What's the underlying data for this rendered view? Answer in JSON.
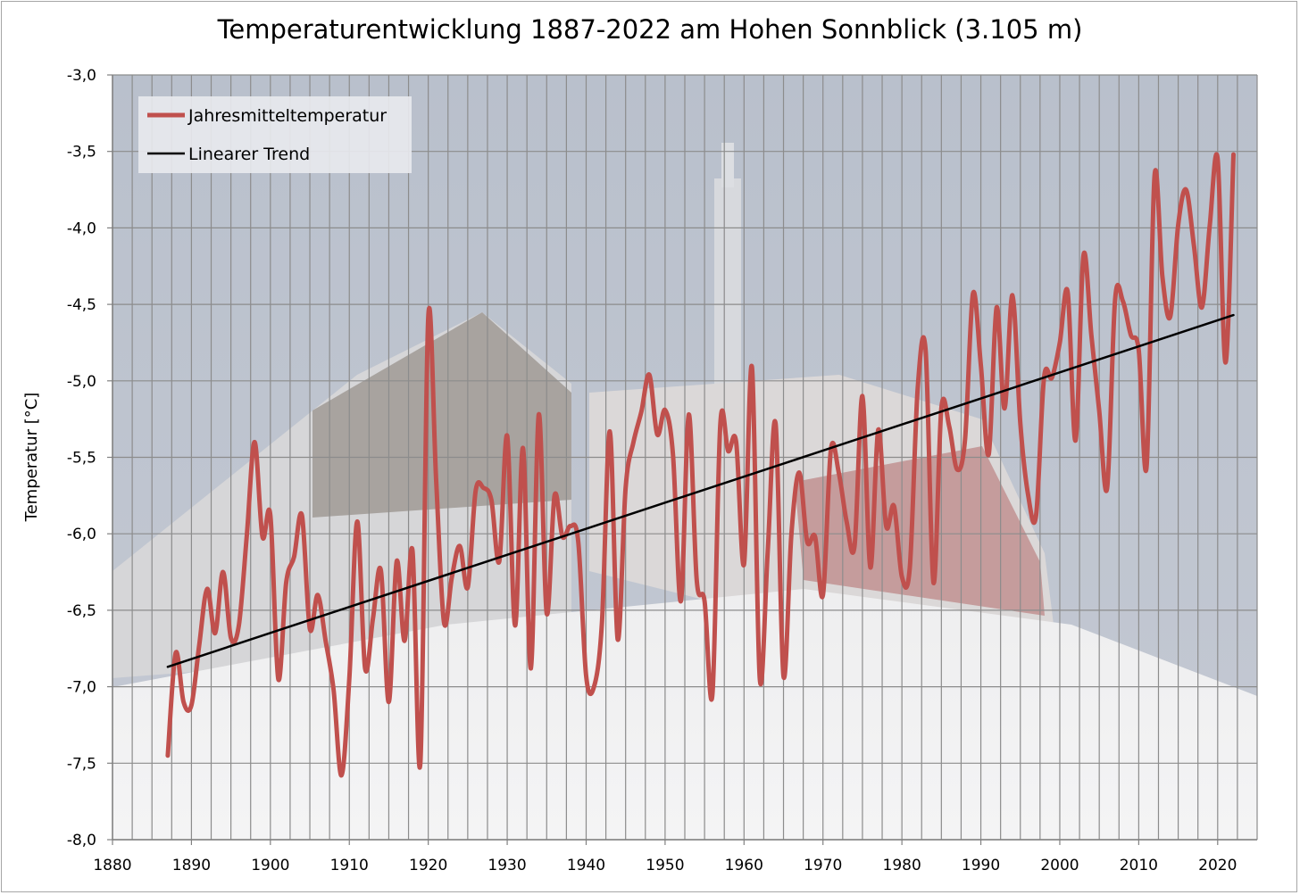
{
  "chart_data": {
    "type": "line",
    "title": "Temperaturentwicklung 1887-2022 am Hohen Sonnblick (3.105 m)",
    "xlabel": "",
    "ylabel": "Temperatur [°C]",
    "xlim": [
      1880,
      2025
    ],
    "ylim": [
      -8.0,
      -3.0
    ],
    "x_ticks": [
      1880,
      1890,
      1900,
      1910,
      1920,
      1930,
      1940,
      1950,
      1960,
      1970,
      1980,
      1990,
      2000,
      2010,
      2020
    ],
    "x_tick_labels": [
      "1880",
      "1890",
      "1900",
      "1910",
      "1920",
      "1930",
      "1940",
      "1950",
      "1960",
      "1970",
      "1980",
      "1990",
      "2000",
      "2010",
      "2020"
    ],
    "y_ticks": [
      -8.0,
      -7.5,
      -7.0,
      -6.5,
      -6.0,
      -5.5,
      -5.0,
      -4.5,
      -4.0,
      -3.5,
      -3.0
    ],
    "y_tick_labels": [
      "-8,0",
      "-7,5",
      "-7,0",
      "-6,5",
      "-6,0",
      "-5,5",
      "-5,0",
      "-4,5",
      "-4,0",
      "-3,5",
      "-3,0"
    ],
    "grid": true,
    "legend_position": "top-left",
    "series": [
      {
        "name": "Jahresmitteltemperatur",
        "color": "#c0504d",
        "x": [
          1887,
          1888,
          1889,
          1890,
          1891,
          1892,
          1893,
          1894,
          1895,
          1896,
          1897,
          1898,
          1899,
          1900,
          1901,
          1902,
          1903,
          1904,
          1905,
          1906,
          1907,
          1908,
          1909,
          1910,
          1911,
          1912,
          1913,
          1914,
          1915,
          1916,
          1917,
          1918,
          1919,
          1920,
          1921,
          1922,
          1923,
          1924,
          1925,
          1926,
          1927,
          1928,
          1929,
          1930,
          1931,
          1932,
          1933,
          1934,
          1935,
          1936,
          1937,
          1938,
          1939,
          1940,
          1941,
          1942,
          1943,
          1944,
          1945,
          1946,
          1947,
          1948,
          1949,
          1950,
          1951,
          1952,
          1953,
          1954,
          1955,
          1956,
          1957,
          1958,
          1959,
          1960,
          1961,
          1962,
          1963,
          1964,
          1965,
          1966,
          1967,
          1968,
          1969,
          1970,
          1971,
          1972,
          1973,
          1974,
          1975,
          1976,
          1977,
          1978,
          1979,
          1980,
          1981,
          1982,
          1983,
          1984,
          1985,
          1986,
          1987,
          1988,
          1989,
          1990,
          1991,
          1992,
          1993,
          1994,
          1995,
          1996,
          1997,
          1998,
          1999,
          2000,
          2001,
          2002,
          2003,
          2004,
          2005,
          2006,
          2007,
          2008,
          2009,
          2010,
          2011,
          2012,
          2013,
          2014,
          2015,
          2016,
          2017,
          2018,
          2019,
          2020,
          2021,
          2022
        ],
        "values": [
          -7.45,
          -6.78,
          -7.1,
          -7.12,
          -6.72,
          -6.36,
          -6.65,
          -6.25,
          -6.68,
          -6.6,
          -6.02,
          -5.4,
          -6.02,
          -5.88,
          -6.95,
          -6.32,
          -6.15,
          -5.88,
          -6.62,
          -6.4,
          -6.7,
          -7.02,
          -7.58,
          -6.95,
          -5.92,
          -6.88,
          -6.55,
          -6.24,
          -7.1,
          -6.18,
          -6.7,
          -6.11,
          -7.5,
          -4.58,
          -5.65,
          -6.58,
          -6.28,
          -6.08,
          -6.35,
          -5.72,
          -5.7,
          -5.78,
          -6.18,
          -5.36,
          -6.6,
          -5.44,
          -6.88,
          -5.22,
          -6.52,
          -5.75,
          -6.02,
          -5.95,
          -6.05,
          -6.93,
          -7.0,
          -6.58,
          -5.33,
          -6.69,
          -5.7,
          -5.4,
          -5.2,
          -4.96,
          -5.35,
          -5.19,
          -5.48,
          -6.44,
          -5.22,
          -6.3,
          -6.44,
          -7.05,
          -5.28,
          -5.46,
          -5.4,
          -6.2,
          -4.91,
          -6.95,
          -6.12,
          -5.28,
          -6.93,
          -6.0,
          -5.6,
          -6.05,
          -6.02,
          -6.4,
          -5.45,
          -5.6,
          -5.92,
          -6.08,
          -5.1,
          -6.22,
          -5.32,
          -5.95,
          -5.82,
          -6.28,
          -6.22,
          -5.05,
          -4.8,
          -6.32,
          -5.18,
          -5.3,
          -5.58,
          -5.38,
          -4.43,
          -4.9,
          -5.48,
          -4.52,
          -5.18,
          -4.44,
          -5.28,
          -5.75,
          -5.88,
          -4.98,
          -4.98,
          -4.75,
          -4.42,
          -5.39,
          -4.18,
          -4.7,
          -5.2,
          -5.7,
          -4.47,
          -4.48,
          -4.7,
          -4.8,
          -5.56,
          -3.66,
          -4.32,
          -4.58,
          -3.98,
          -3.75,
          -4.12,
          -4.52,
          -3.98,
          -3.55,
          -4.88,
          -3.52
        ]
      },
      {
        "name": "Linearer Trend",
        "color": "#000000",
        "x": [
          1887,
          2022
        ],
        "values": [
          -6.87,
          -4.57
        ]
      }
    ]
  }
}
